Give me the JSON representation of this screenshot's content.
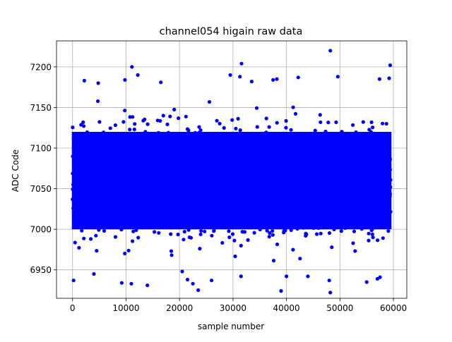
{
  "chart_data": {
    "type": "scatter",
    "title": "channel054 higain raw data",
    "xlabel": "sample number",
    "ylabel": "ADC Code",
    "xlim": [
      -3000,
      62500
    ],
    "ylim": [
      6915,
      7232
    ],
    "xticks": [
      0,
      10000,
      20000,
      30000,
      40000,
      50000,
      60000
    ],
    "yticks": [
      6950,
      7000,
      7050,
      7100,
      7150,
      7200
    ],
    "grid": true,
    "legend": "none",
    "marker_color": "#0000ff",
    "series": [
      {
        "n_samples": 60000,
        "x_range": [
          0,
          59500
        ],
        "core_band": [
          7000,
          7120
        ],
        "description_stats": {
          "center": 7060
        },
        "outliers": [
          {
            "x": 200,
            "y": 6937
          },
          {
            "x": 4000,
            "y": 6945
          },
          {
            "x": 9200,
            "y": 6934
          },
          {
            "x": 11000,
            "y": 6933
          },
          {
            "x": 14000,
            "y": 6931
          },
          {
            "x": 20500,
            "y": 6948
          },
          {
            "x": 21500,
            "y": 6938
          },
          {
            "x": 22500,
            "y": 6933
          },
          {
            "x": 23500,
            "y": 6925
          },
          {
            "x": 26000,
            "y": 6937
          },
          {
            "x": 31500,
            "y": 6942
          },
          {
            "x": 39000,
            "y": 6924
          },
          {
            "x": 40000,
            "y": 6942
          },
          {
            "x": 44000,
            "y": 6942
          },
          {
            "x": 48000,
            "y": 6937
          },
          {
            "x": 48200,
            "y": 6922
          },
          {
            "x": 55000,
            "y": 6935
          },
          {
            "x": 57000,
            "y": 6939
          },
          {
            "x": 57500,
            "y": 6941
          },
          {
            "x": 2200,
            "y": 7183
          },
          {
            "x": 4800,
            "y": 7180
          },
          {
            "x": 9800,
            "y": 7184
          },
          {
            "x": 11100,
            "y": 7200
          },
          {
            "x": 12200,
            "y": 7190
          },
          {
            "x": 16500,
            "y": 7181
          },
          {
            "x": 29500,
            "y": 7190
          },
          {
            "x": 31600,
            "y": 7204
          },
          {
            "x": 31300,
            "y": 7188
          },
          {
            "x": 33500,
            "y": 7182
          },
          {
            "x": 37500,
            "y": 7184
          },
          {
            "x": 38200,
            "y": 7185
          },
          {
            "x": 42200,
            "y": 7187
          },
          {
            "x": 48200,
            "y": 7220
          },
          {
            "x": 49600,
            "y": 7188
          },
          {
            "x": 57400,
            "y": 7185
          },
          {
            "x": 59400,
            "y": 7202
          },
          {
            "x": 59200,
            "y": 7186
          }
        ]
      }
    ]
  }
}
